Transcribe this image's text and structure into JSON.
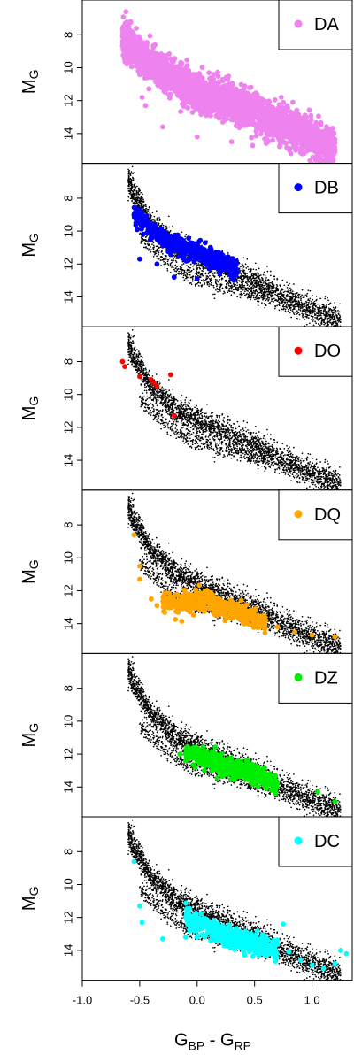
{
  "chart_data": {
    "type": "scatter",
    "layout": "6 stacked panels sharing x axis",
    "xlabel": {
      "base": "G",
      "sub1": "BP",
      "mid": " - G",
      "sub2": "RP"
    },
    "ylabel": {
      "base": "M",
      "sub": "G"
    },
    "xlim": [
      -1.0,
      1.35
    ],
    "ylim": [
      15.6,
      6.1
    ],
    "y_inverted": true,
    "x_ticks": [
      "-1.0",
      "-0.5",
      "0.0",
      "0.5",
      "1.0"
    ],
    "y_ticks": [
      "8",
      "10",
      "12",
      "14"
    ],
    "grid": false,
    "legend_placement": "top-right",
    "background_population": {
      "color": "#000000",
      "description_sequence": [
        [
          -0.6,
          7.0
        ],
        [
          -0.4,
          9.6
        ],
        [
          -0.2,
          10.8
        ],
        [
          0.0,
          11.6
        ],
        [
          0.2,
          12.2
        ],
        [
          0.4,
          12.8
        ],
        [
          0.6,
          13.5
        ],
        [
          0.8,
          14.2
        ],
        [
          1.0,
          14.8
        ],
        [
          1.2,
          15.3
        ]
      ],
      "lower_branch": [
        [
          -0.5,
          10.3
        ],
        [
          -0.2,
          12.2
        ],
        [
          0.0,
          12.9
        ],
        [
          0.2,
          13.3
        ],
        [
          0.4,
          13.6
        ],
        [
          0.6,
          14.0
        ]
      ]
    },
    "panels": [
      {
        "legend": "DA",
        "color": "#ee82ee",
        "background_visible": false,
        "sequence": [
          [
            -0.65,
            8.3
          ],
          [
            -0.55,
            8.8
          ],
          [
            -0.45,
            9.6
          ],
          [
            -0.3,
            10.3
          ],
          [
            -0.1,
            11.0
          ],
          [
            0.1,
            11.6
          ],
          [
            0.3,
            12.1
          ],
          [
            0.5,
            12.7
          ],
          [
            0.7,
            13.3
          ],
          [
            0.9,
            14.0
          ],
          [
            1.1,
            14.7
          ],
          [
            1.2,
            15.0
          ]
        ],
        "outliers": [
          [
            -0.62,
            6.6
          ],
          [
            -0.58,
            7.2
          ],
          [
            -0.3,
            13.6
          ],
          [
            0.0,
            14.2
          ],
          [
            0.3,
            14.5
          ],
          [
            0.6,
            14.6
          ],
          [
            0.9,
            15.0
          ],
          [
            1.0,
            14.9
          ],
          [
            -0.45,
            12.3
          ],
          [
            -0.48,
            11.8
          ]
        ]
      },
      {
        "legend": "DB",
        "color": "#0000ff",
        "background_visible": true,
        "sequence": [
          [
            -0.55,
            8.8
          ],
          [
            -0.45,
            9.6
          ],
          [
            -0.35,
            10.2
          ],
          [
            -0.2,
            10.8
          ],
          [
            -0.05,
            11.2
          ],
          [
            0.1,
            11.6
          ],
          [
            0.25,
            12.0
          ],
          [
            0.35,
            12.3
          ]
        ],
        "outliers": [
          [
            -0.35,
            12.0
          ],
          [
            -0.2,
            12.8
          ],
          [
            0.0,
            12.9
          ],
          [
            -0.5,
            11.7
          ],
          [
            0.3,
            12.8
          ]
        ]
      },
      {
        "legend": "DO",
        "color": "#ff0000",
        "background_visible": true,
        "sequence": [],
        "points": [
          [
            -0.65,
            8.0
          ],
          [
            -0.63,
            8.3
          ],
          [
            -0.5,
            8.9
          ],
          [
            -0.4,
            9.1
          ],
          [
            -0.38,
            9.3
          ],
          [
            -0.35,
            9.5
          ],
          [
            -0.23,
            8.8
          ],
          [
            -0.2,
            11.3
          ]
        ]
      },
      {
        "legend": "DQ",
        "color": "#ffa500",
        "background_visible": true,
        "sequence": [
          [
            -0.3,
            12.7
          ],
          [
            -0.1,
            12.8
          ],
          [
            0.1,
            12.6
          ],
          [
            0.2,
            12.9
          ],
          [
            0.3,
            13.1
          ],
          [
            0.4,
            13.4
          ],
          [
            0.5,
            13.7
          ],
          [
            0.6,
            14.0
          ]
        ],
        "outliers": [
          [
            -0.55,
            8.6
          ],
          [
            -0.5,
            10.5
          ],
          [
            -0.5,
            11.3
          ],
          [
            -0.4,
            12.5
          ],
          [
            -0.35,
            12.9
          ],
          [
            0.7,
            14.2
          ],
          [
            0.85,
            14.5
          ],
          [
            1.0,
            14.7
          ],
          [
            1.2,
            14.8
          ],
          [
            -0.1,
            12.3
          ]
        ]
      },
      {
        "legend": "DZ",
        "color": "#00ee00",
        "background_visible": true,
        "sequence": [
          [
            -0.1,
            11.9
          ],
          [
            0.1,
            12.3
          ],
          [
            0.25,
            12.7
          ],
          [
            0.4,
            13.0
          ],
          [
            0.5,
            13.3
          ],
          [
            0.6,
            13.6
          ],
          [
            0.7,
            13.9
          ]
        ],
        "outliers": [
          [
            -0.15,
            12.0
          ],
          [
            1.05,
            14.3
          ],
          [
            1.2,
            14.9
          ],
          [
            0.0,
            12.4
          ]
        ]
      },
      {
        "legend": "DC",
        "color": "#00ffff",
        "background_visible": true,
        "sequence": [
          [
            -0.1,
            11.8
          ],
          [
            0.0,
            12.4
          ],
          [
            0.1,
            12.7
          ],
          [
            0.2,
            13.0
          ],
          [
            0.3,
            13.2
          ],
          [
            0.4,
            13.4
          ],
          [
            0.5,
            13.6
          ],
          [
            0.6,
            13.8
          ],
          [
            0.7,
            14.0
          ]
        ],
        "outliers": [
          [
            -0.55,
            8.6
          ],
          [
            -0.5,
            11.3
          ],
          [
            -0.48,
            12.3
          ],
          [
            -0.3,
            13.3
          ],
          [
            -0.1,
            13.2
          ],
          [
            0.8,
            14.1
          ],
          [
            0.9,
            14.6
          ],
          [
            1.0,
            14.9
          ],
          [
            1.1,
            15.1
          ],
          [
            1.2,
            14.8
          ],
          [
            1.3,
            14.2
          ],
          [
            1.25,
            14.0
          ],
          [
            0.75,
            12.4
          ]
        ]
      }
    ]
  }
}
